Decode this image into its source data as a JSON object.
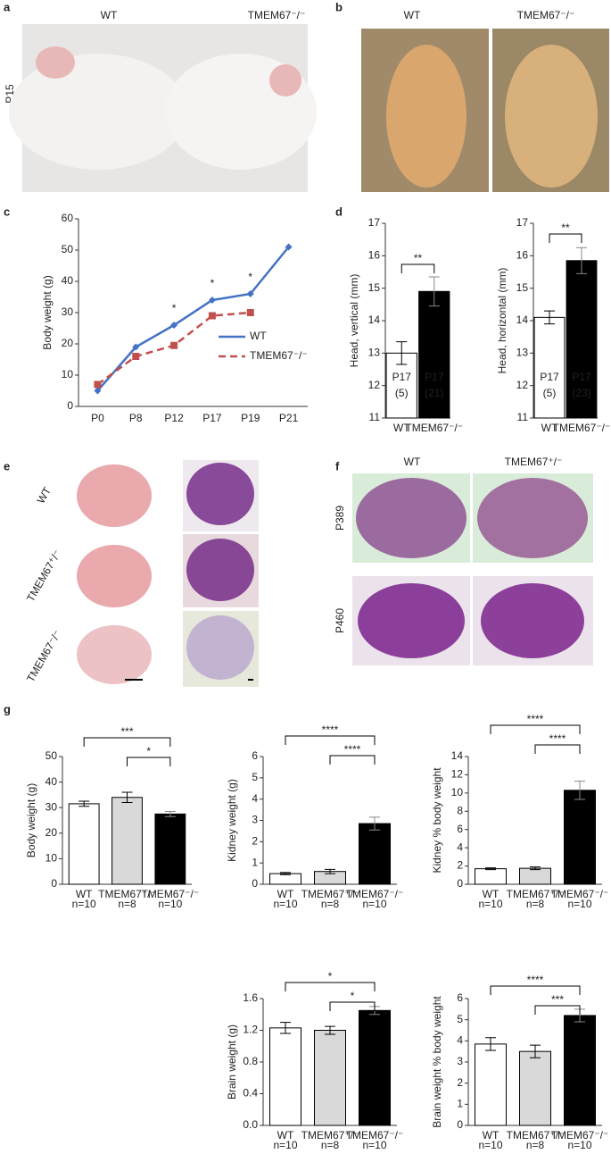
{
  "panels": {
    "a": {
      "label": "a",
      "columns": [
        "WT",
        "TMEM67⁻/⁻"
      ],
      "row": "P15"
    },
    "b": {
      "label": "b",
      "columns": [
        "WT",
        "TMEM67⁻/⁻"
      ]
    },
    "c": {
      "label": "c"
    },
    "d": {
      "label": "d"
    },
    "e": {
      "label": "e",
      "rows": [
        "WT",
        "TMEM67⁺/⁻",
        "TMEM67⁻/⁻"
      ]
    },
    "f": {
      "label": "f",
      "columns": [
        "WT",
        "TMEM67⁺/⁻"
      ],
      "rows": [
        "P389",
        "P460"
      ]
    },
    "g": {
      "label": "g"
    }
  },
  "chart_data": [
    {
      "type": "line",
      "y_label": "Body weight (g)",
      "categories": [
        "P0",
        "P8",
        "P12",
        "P17",
        "P19",
        "P21"
      ],
      "ylim": [
        0,
        60
      ],
      "yticks": [
        0,
        10,
        20,
        30,
        40,
        50,
        60
      ],
      "legend": "right",
      "series": [
        {
          "name": "WT",
          "color": "#4472c4",
          "values": [
            5,
            19,
            26,
            34,
            36,
            51
          ]
        },
        {
          "name": "TMEM67⁻/⁻",
          "color": "#c0504d",
          "dashed": true,
          "values": [
            7,
            16,
            19.5,
            29,
            30,
            null
          ]
        }
      ],
      "annotations": [
        {
          "text": "*",
          "x": "P12"
        },
        {
          "text": "*",
          "x": "P17"
        },
        {
          "text": "*",
          "x": "P19"
        }
      ]
    },
    {
      "type": "bar",
      "y_label": "Head, vertical (mm)",
      "categories": [
        "WT",
        "TMEM67⁻/⁻"
      ],
      "colors": [
        "#ffffff",
        "#000000"
      ],
      "ylim": [
        11,
        17
      ],
      "yticks": [
        11,
        12,
        13,
        14,
        15,
        16,
        17
      ],
      "values": [
        13,
        14.9
      ],
      "errors": [
        0.35,
        0.45
      ],
      "bar_labels": [
        [
          "P17",
          "(5)"
        ],
        [
          "P17",
          "(21)"
        ]
      ],
      "significance": [
        {
          "from": "WT",
          "to": "TMEM67⁻/⁻",
          "label": "**"
        }
      ]
    },
    {
      "type": "bar",
      "y_label": "Head, horizontal (mm)",
      "categories": [
        "WT",
        "TMEM67⁻/⁻"
      ],
      "colors": [
        "#ffffff",
        "#000000"
      ],
      "ylim": [
        11,
        17
      ],
      "yticks": [
        11,
        12,
        13,
        14,
        15,
        16,
        17
      ],
      "values": [
        14.1,
        15.85
      ],
      "errors": [
        0.2,
        0.4
      ],
      "bar_labels": [
        [
          "P17",
          "(5)"
        ],
        [
          "P17",
          "(23)"
        ]
      ],
      "significance": [
        {
          "from": "WT",
          "to": "TMEM67⁻/⁻",
          "label": "**"
        }
      ]
    },
    {
      "type": "bar",
      "y_label": "Body weight (g)",
      "categories": [
        "WT",
        "TMEM67⁺/⁻",
        "TMEM67⁻/⁻"
      ],
      "n_labels": [
        "n=10",
        "n=8",
        "n=10"
      ],
      "colors": [
        "#ffffff",
        "#d9d9d9",
        "#000000"
      ],
      "ylim": [
        0,
        50
      ],
      "yticks": [
        0,
        10,
        20,
        30,
        40,
        50
      ],
      "values": [
        31.5,
        34,
        27.5
      ],
      "errors": [
        1,
        2,
        1
      ],
      "significance": [
        {
          "from": "WT",
          "to": "TMEM67⁻/⁻",
          "label": "***"
        },
        {
          "from": "TMEM67⁺/⁻",
          "to": "TMEM67⁻/⁻",
          "label": "*"
        }
      ]
    },
    {
      "type": "bar",
      "y_label": "Kidney weight (g)",
      "categories": [
        "WT",
        "TMEM67⁺/⁻",
        "TMEM67⁻/⁻"
      ],
      "n_labels": [
        "n=10",
        "n=8",
        "n=10"
      ],
      "colors": [
        "#ffffff",
        "#d9d9d9",
        "#000000"
      ],
      "ylim": [
        0,
        6
      ],
      "yticks": [
        0,
        1,
        2,
        3,
        4,
        5,
        6
      ],
      "values": [
        0.5,
        0.6,
        2.85
      ],
      "errors": [
        0.05,
        0.1,
        0.3
      ],
      "significance": [
        {
          "from": "WT",
          "to": "TMEM67⁻/⁻",
          "label": "****"
        },
        {
          "from": "TMEM67⁺/⁻",
          "to": "TMEM67⁻/⁻",
          "label": "****"
        }
      ]
    },
    {
      "type": "bar",
      "y_label": "Kidney % body weight",
      "categories": [
        "WT",
        "TMEM67⁺/⁻",
        "TMEM67⁻/⁻"
      ],
      "n_labels": [
        "n=10",
        "n=8",
        "n=10"
      ],
      "colors": [
        "#ffffff",
        "#d9d9d9",
        "#000000"
      ],
      "ylim": [
        0,
        14
      ],
      "yticks": [
        0,
        2,
        4,
        6,
        8,
        10,
        12,
        14
      ],
      "values": [
        1.7,
        1.75,
        10.3
      ],
      "errors": [
        0.1,
        0.15,
        1
      ],
      "significance": [
        {
          "from": "WT",
          "to": "TMEM67⁻/⁻",
          "label": "****"
        },
        {
          "from": "TMEM67⁺/⁻",
          "to": "TMEM67⁻/⁻",
          "label": "****"
        }
      ]
    },
    {
      "type": "bar",
      "y_label": "Brain weight (g)",
      "categories": [
        "WT",
        "TMEM67⁺/⁻",
        "TMEM67⁻/⁻"
      ],
      "n_labels": [
        "n=10",
        "n=8",
        "n=10"
      ],
      "colors": [
        "#ffffff",
        "#d9d9d9",
        "#000000"
      ],
      "ylim": [
        0,
        1.6
      ],
      "yticks": [
        {
          "value": 0,
          "label": "0.0"
        },
        0.4,
        0.8,
        1.2,
        1.6
      ],
      "values": [
        1.23,
        1.2,
        1.45
      ],
      "errors": [
        0.07,
        0.05,
        0.05
      ],
      "significance": [
        {
          "from": "WT",
          "to": "TMEM67⁻/⁻",
          "label": "*"
        },
        {
          "from": "TMEM67⁺/⁻",
          "to": "TMEM67⁻/⁻",
          "label": "*"
        }
      ]
    },
    {
      "type": "bar",
      "y_label": "Brain weight % body weight",
      "categories": [
        "WT",
        "TMEM67⁺/⁻",
        "TMEM67⁻/⁻"
      ],
      "n_labels": [
        "n=10",
        "n=8",
        "n=10"
      ],
      "colors": [
        "#ffffff",
        "#d9d9d9",
        "#000000"
      ],
      "ylim": [
        0,
        6
      ],
      "yticks": [
        0,
        1,
        2,
        3,
        4,
        5,
        6
      ],
      "values": [
        3.85,
        3.5,
        5.2
      ],
      "errors": [
        0.3,
        0.3,
        0.3
      ],
      "significance": [
        {
          "from": "WT",
          "to": "TMEM67⁻/⁻",
          "label": "****"
        },
        {
          "from": "TMEM67⁺/⁻",
          "to": "TMEM67⁻/⁻",
          "label": "***"
        }
      ]
    }
  ]
}
